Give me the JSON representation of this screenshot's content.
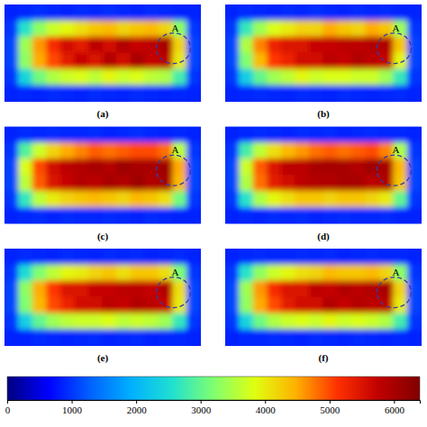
{
  "chart_data": {
    "type": "heatmap",
    "panels": [
      {
        "label": "(a)",
        "annotation": "A",
        "cells": [
          [
            850,
            900,
            950,
            900,
            880,
            920,
            900,
            950,
            900,
            870,
            930,
            900,
            880,
            850
          ],
          [
            1000,
            2600,
            3300,
            3700,
            3900,
            4100,
            4300,
            4400,
            4200,
            4300,
            4400,
            4200,
            3300,
            1000
          ],
          [
            1100,
            3400,
            4600,
            5200,
            5600,
            5400,
            5800,
            5600,
            5900,
            5700,
            5800,
            6000,
            4200,
            1100
          ],
          [
            1100,
            3300,
            4500,
            5000,
            5400,
            5700,
            5500,
            5900,
            5600,
            6000,
            5700,
            5800,
            4000,
            1100
          ],
          [
            1000,
            2400,
            3100,
            3500,
            3700,
            3800,
            3600,
            3900,
            3700,
            3800,
            3600,
            3500,
            2800,
            1000
          ],
          [
            850,
            900,
            880,
            920,
            900,
            870,
            910,
            900,
            880,
            920,
            900,
            870,
            900,
            850
          ]
        ]
      },
      {
        "label": "(b)",
        "annotation": "A",
        "cells": [
          [
            880,
            920,
            900,
            870,
            910,
            900,
            940,
            900,
            880,
            910,
            900,
            930,
            870,
            860
          ],
          [
            1000,
            2700,
            3400,
            3800,
            4000,
            4200,
            4200,
            4500,
            4300,
            4200,
            4500,
            4300,
            3400,
            1000
          ],
          [
            1100,
            3500,
            4700,
            5300,
            5500,
            5500,
            5700,
            5700,
            5800,
            5800,
            5900,
            5900,
            4300,
            1100
          ],
          [
            1100,
            3200,
            4400,
            5100,
            5300,
            5600,
            5600,
            5800,
            5700,
            5900,
            5800,
            5700,
            3900,
            1100
          ],
          [
            1000,
            2300,
            3000,
            3400,
            3600,
            3900,
            3700,
            3800,
            3800,
            3700,
            3700,
            3400,
            2700,
            1000
          ],
          [
            860,
            890,
            910,
            900,
            880,
            920,
            900,
            870,
            910,
            900,
            880,
            900,
            910,
            850
          ]
        ]
      },
      {
        "label": "(c)",
        "annotation": "A",
        "cells": [
          [
            870,
            910,
            900,
            930,
            890,
            900,
            920,
            880,
            900,
            940,
            900,
            880,
            900,
            860
          ],
          [
            1000,
            2900,
            3700,
            4200,
            4500,
            4700,
            4900,
            4800,
            4900,
            5000,
            5000,
            4800,
            3600,
            1000
          ],
          [
            1100,
            3800,
            5000,
            5600,
            5800,
            5900,
            6000,
            5900,
            6100,
            6000,
            6000,
            6100,
            4500,
            1100
          ],
          [
            1100,
            3600,
            4900,
            5500,
            5700,
            5900,
            5800,
            6000,
            5900,
            6100,
            5900,
            6000,
            4400,
            1100
          ],
          [
            1000,
            2700,
            3600,
            4000,
            4200,
            4300,
            4400,
            4300,
            4200,
            4400,
            4300,
            4100,
            3100,
            1000
          ],
          [
            850,
            900,
            920,
            880,
            910,
            900,
            890,
            920,
            900,
            870,
            910,
            900,
            880,
            860
          ]
        ]
      },
      {
        "label": "(d)",
        "annotation": "A",
        "cells": [
          [
            860,
            900,
            920,
            900,
            880,
            930,
            900,
            910,
            870,
            900,
            920,
            900,
            890,
            850
          ],
          [
            1000,
            2800,
            3600,
            4100,
            4400,
            4600,
            4800,
            4900,
            4800,
            4900,
            5000,
            4700,
            3500,
            1000
          ],
          [
            1100,
            3700,
            4900,
            5500,
            5800,
            5800,
            6000,
            6000,
            6000,
            5900,
            6100,
            6000,
            4400,
            1100
          ],
          [
            1100,
            3500,
            4800,
            5400,
            5600,
            5800,
            5900,
            5900,
            6000,
            6000,
            5800,
            5900,
            4300,
            1100
          ],
          [
            1000,
            2600,
            3500,
            3900,
            4100,
            4300,
            4300,
            4200,
            4300,
            4300,
            4200,
            4000,
            3000,
            1000
          ],
          [
            870,
            900,
            880,
            910,
            900,
            920,
            880,
            900,
            910,
            890,
            900,
            920,
            880,
            860
          ]
        ]
      },
      {
        "label": "(e)",
        "annotation": "A",
        "cells": [
          [
            860,
            910,
            900,
            880,
            920,
            900,
            870,
            910,
            900,
            930,
            880,
            900,
            910,
            850
          ],
          [
            1000,
            2500,
            3200,
            3600,
            3900,
            4000,
            4200,
            4300,
            4100,
            4300,
            4300,
            4100,
            3200,
            1000
          ],
          [
            1100,
            3300,
            4500,
            5100,
            5500,
            5500,
            5700,
            5700,
            5800,
            5800,
            5700,
            5900,
            4100,
            1100
          ],
          [
            1100,
            3200,
            4400,
            5000,
            5300,
            5600,
            5600,
            5800,
            5700,
            5900,
            5800,
            5700,
            4000,
            1100
          ],
          [
            1000,
            2300,
            3000,
            3400,
            3600,
            3700,
            3700,
            3800,
            3600,
            3700,
            3600,
            3400,
            2700,
            1000
          ],
          [
            850,
            880,
            910,
            900,
            870,
            900,
            920,
            880,
            900,
            910,
            870,
            900,
            890,
            860
          ]
        ]
      },
      {
        "label": "(f)",
        "annotation": "A",
        "cells": [
          [
            870,
            900,
            930,
            900,
            890,
            910,
            900,
            920,
            880,
            900,
            910,
            890,
            900,
            850
          ],
          [
            1000,
            2600,
            3300,
            3700,
            3900,
            4100,
            4200,
            4400,
            4300,
            4300,
            4400,
            4200,
            3300,
            1000
          ],
          [
            1100,
            3400,
            4600,
            5200,
            5500,
            5500,
            5800,
            5700,
            5900,
            5800,
            5900,
            6000,
            4200,
            1100
          ],
          [
            1100,
            3300,
            4500,
            5000,
            5400,
            5600,
            5600,
            5900,
            5700,
            5900,
            5800,
            5800,
            4000,
            1100
          ],
          [
            1000,
            2400,
            3100,
            3500,
            3700,
            3800,
            3700,
            3900,
            3700,
            3800,
            3700,
            3500,
            2800,
            1000
          ],
          [
            860,
            900,
            890,
            910,
            900,
            880,
            910,
            900,
            870,
            920,
            900,
            880,
            900,
            850
          ]
        ]
      }
    ],
    "colorbar_lim": [
      0,
      6400
    ],
    "colorbar_ticks": [
      0,
      1000,
      2000,
      3000,
      4000,
      5000,
      6000
    ]
  }
}
